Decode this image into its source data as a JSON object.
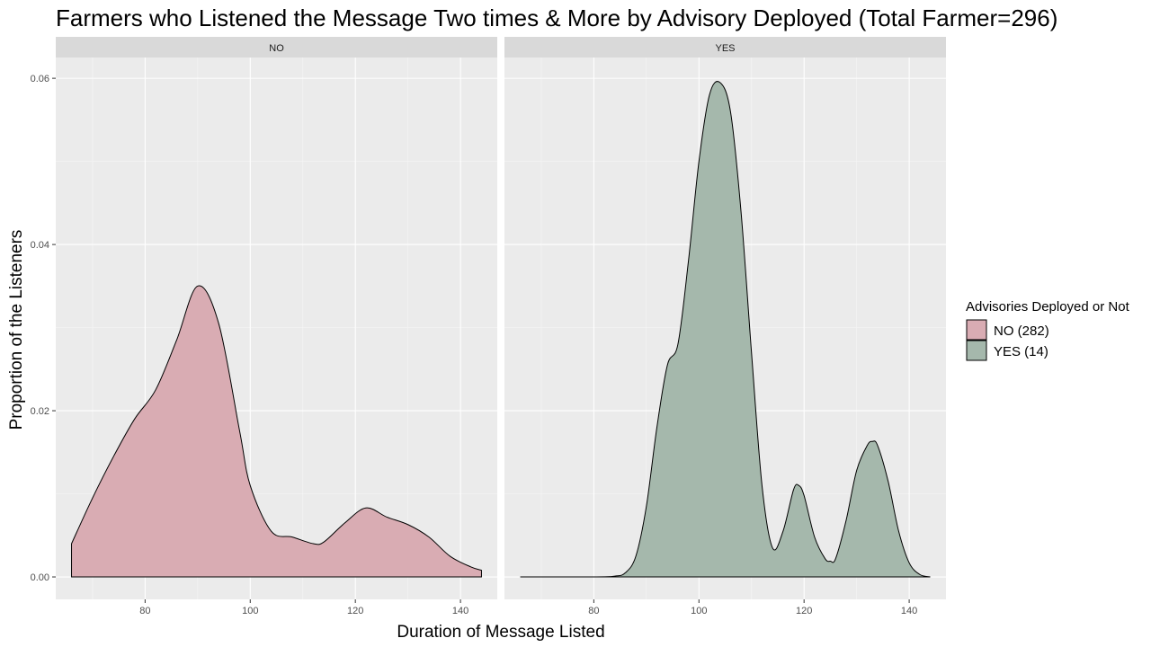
{
  "chart_data": {
    "type": "area",
    "title": "Farmers who Listened the Message Two times & More by Advisory Deployed (Total Farmer=296)",
    "xlabel": "Duration of Message Listed",
    "ylabel": "Proportion of the Listeners",
    "xlim": [
      63,
      147
    ],
    "ylim": [
      -0.0027,
      0.0625
    ],
    "x_ticks": [
      "80",
      "100",
      "120",
      "140"
    ],
    "y_ticks": [
      "0.00",
      "0.02",
      "0.04",
      "0.06"
    ],
    "legend": {
      "title": "Advisories Deployed or Not",
      "position": "right",
      "items": [
        {
          "label": "NO (282)",
          "color": "#D9ACB3"
        },
        {
          "label": "YES (14)",
          "color": "#A5B8AC"
        }
      ]
    },
    "panels": [
      {
        "label": "NO",
        "color": "#D9ACB3",
        "x": [
          66,
          70,
          74,
          78,
          82,
          86,
          90,
          94,
          98,
          100,
          104,
          108,
          112,
          114,
          118,
          122,
          126,
          130,
          134,
          138,
          142,
          144
        ],
        "y": [
          0.004,
          0.0095,
          0.0145,
          0.019,
          0.0225,
          0.0285,
          0.035,
          0.0305,
          0.0175,
          0.011,
          0.0055,
          0.0048,
          0.004,
          0.0042,
          0.0065,
          0.0083,
          0.0072,
          0.0063,
          0.0048,
          0.0025,
          0.0012,
          0.0008
        ]
      },
      {
        "label": "YES",
        "color": "#A5B8AC",
        "x": [
          66,
          80,
          84,
          86,
          88,
          90,
          92,
          94,
          96,
          98,
          100,
          102,
          104,
          106,
          108,
          110,
          112,
          114,
          116,
          118,
          119,
          120,
          122,
          124,
          125,
          126,
          128,
          130,
          132,
          133,
          134,
          136,
          138,
          140,
          142,
          144
        ],
        "y": [
          0.0,
          0.0,
          0.0001,
          0.0005,
          0.0025,
          0.0085,
          0.018,
          0.0255,
          0.028,
          0.038,
          0.05,
          0.058,
          0.0595,
          0.056,
          0.044,
          0.027,
          0.011,
          0.0035,
          0.0055,
          0.0105,
          0.011,
          0.0098,
          0.0048,
          0.0022,
          0.0019,
          0.0022,
          0.0068,
          0.0128,
          0.0158,
          0.0163,
          0.0158,
          0.0115,
          0.0055,
          0.0017,
          0.0003,
          0.0
        ]
      }
    ]
  }
}
